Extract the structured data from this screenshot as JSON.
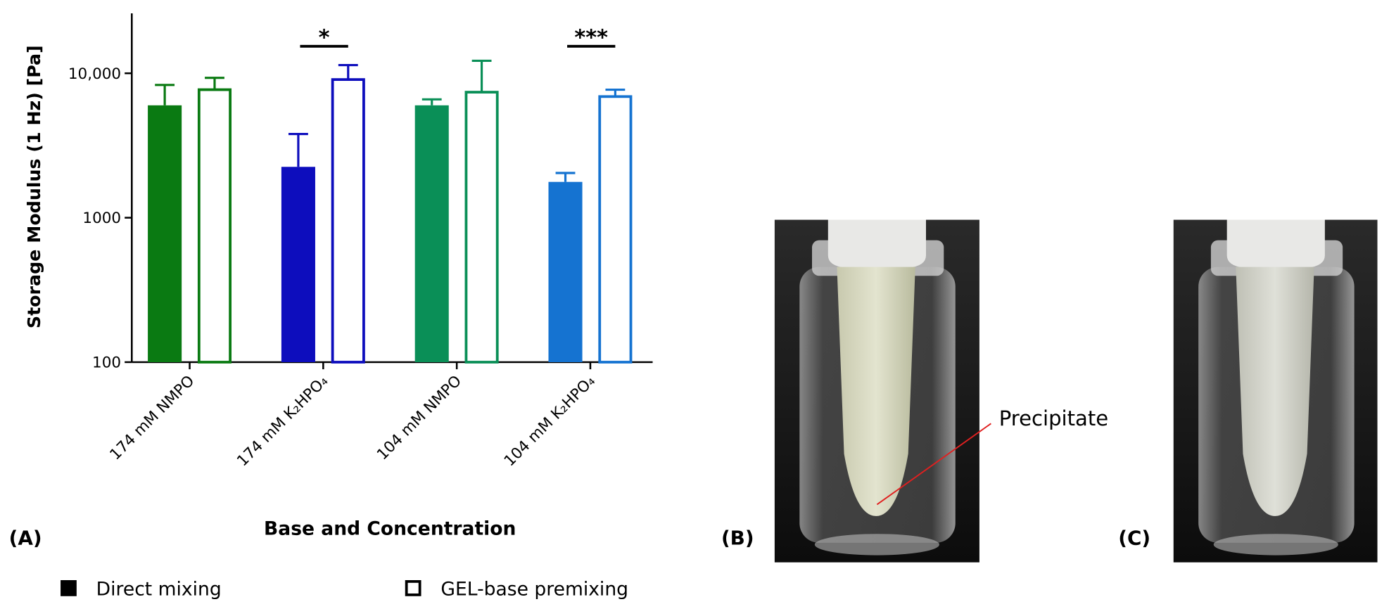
{
  "chart_data": {
    "type": "bar",
    "y_label": "Storage Modulus (1 Hz) [Pa]",
    "x_label": "Base and Concentration",
    "categories": [
      "174 mM NMPO",
      "174 mM K₂HPO₄",
      "104 mM NMPO",
      "104 mM K₂HPO₄"
    ],
    "series": [
      {
        "name": "Direct mixing",
        "color": "#000000",
        "filled": true,
        "colors": [
          "#0a7a12",
          "#0d0dbd",
          "#0a8f57",
          "#1573d1"
        ],
        "values": [
          6000,
          2250,
          6000,
          1770
        ],
        "errors": [
          2300,
          1550,
          600,
          270
        ]
      },
      {
        "name": "GEL-base premixing",
        "color": "#000000",
        "filled": false,
        "colors": [
          "#0a7a12",
          "#0d0dbd",
          "#0a8f57",
          "#1573d1"
        ],
        "values": [
          7700,
          9050,
          7400,
          6900
        ],
        "errors": [
          1600,
          2350,
          4800,
          800
        ]
      }
    ],
    "annotations": [
      {
        "text": "*",
        "category": "174 mM K₂HPO₄"
      },
      {
        "text": "***",
        "category": "104 mM K₂HPO₄"
      }
    ],
    "log_scale": true,
    "ylim": [
      100,
      26000
    ],
    "yticks": [
      100,
      1000,
      {
        "value": 10000,
        "label": "10,000"
      }
    ],
    "legend": "bottom"
  },
  "panels": [
    "(A)",
    "(B)",
    "(C)"
  ],
  "photo_annotation": "Precipitate"
}
